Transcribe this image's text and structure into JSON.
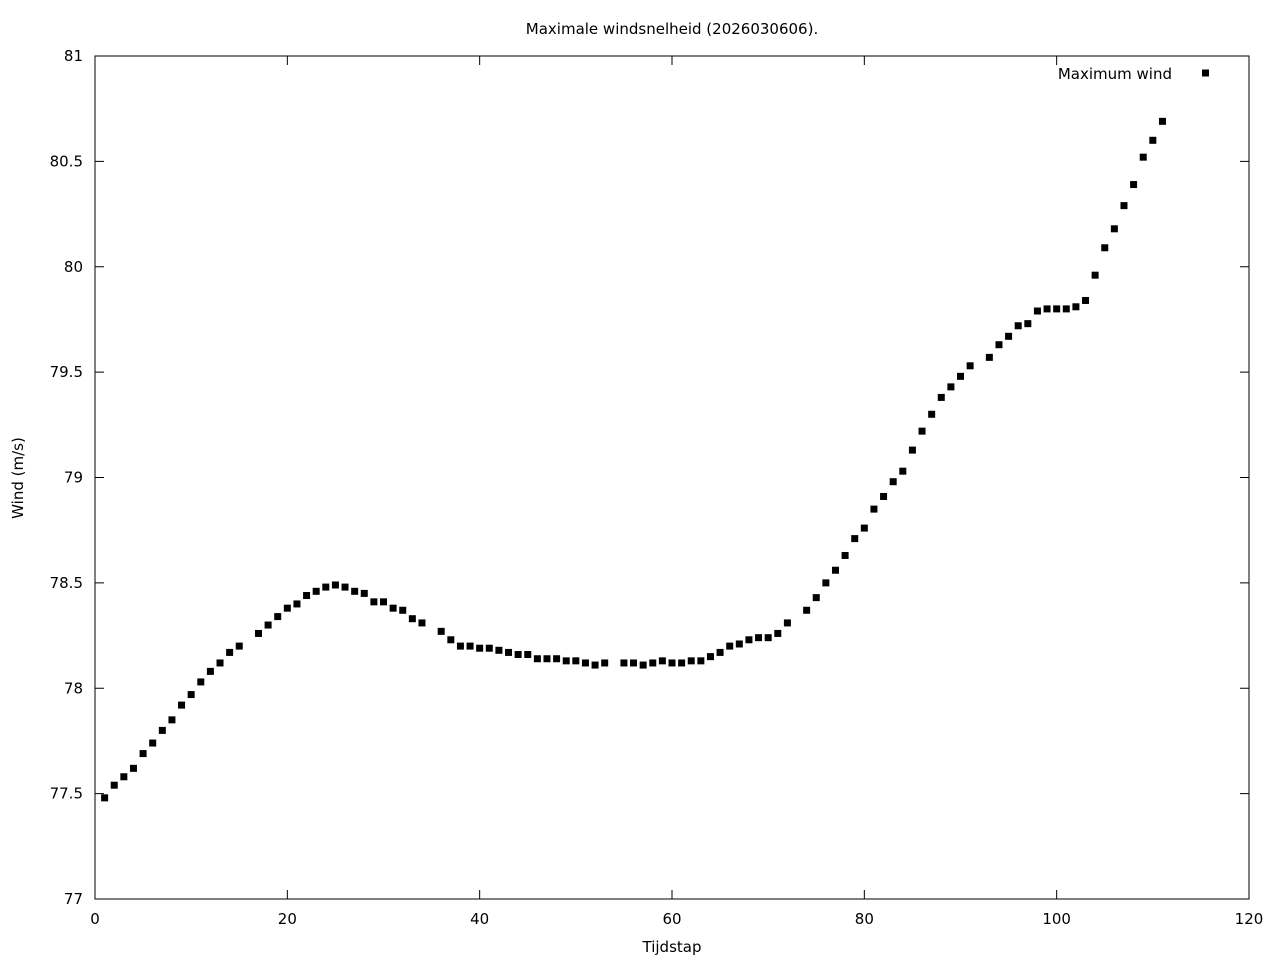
{
  "chart_data": {
    "type": "scatter",
    "title": "Maximale windsnelheid (2026030606).",
    "xlabel": "Tijdstap",
    "ylabel": "Wind (m/s)",
    "xlim": [
      0,
      120
    ],
    "ylim": [
      77,
      81
    ],
    "xticks": [
      0,
      20,
      40,
      60,
      80,
      100,
      120
    ],
    "xtick_labels": [
      "0",
      "20",
      "40",
      "60",
      "80",
      "100",
      "120"
    ],
    "yticks": [
      77,
      77.5,
      78,
      78.5,
      79,
      79.5,
      80,
      80.5,
      81
    ],
    "ytick_labels": [
      "77",
      "77.5",
      "78",
      "78.5",
      "79",
      "79.5",
      "80",
      "80.5",
      "81"
    ],
    "grid": false,
    "legend_position": "top-right",
    "marker_color": "#000000",
    "series": [
      {
        "name": "Maximum wind",
        "points": [
          [
            1,
            77.48
          ],
          [
            2,
            77.54
          ],
          [
            3,
            77.58
          ],
          [
            4,
            77.62
          ],
          [
            5,
            77.69
          ],
          [
            6,
            77.74
          ],
          [
            7,
            77.8
          ],
          [
            8,
            77.85
          ],
          [
            9,
            77.92
          ],
          [
            10,
            77.97
          ],
          [
            11,
            78.03
          ],
          [
            12,
            78.08
          ],
          [
            13,
            78.12
          ],
          [
            14,
            78.17
          ],
          [
            15,
            78.2
          ],
          [
            17,
            78.26
          ],
          [
            18,
            78.3
          ],
          [
            19,
            78.34
          ],
          [
            20,
            78.38
          ],
          [
            21,
            78.4
          ],
          [
            22,
            78.44
          ],
          [
            23,
            78.46
          ],
          [
            24,
            78.48
          ],
          [
            25,
            78.49
          ],
          [
            26,
            78.48
          ],
          [
            27,
            78.46
          ],
          [
            28,
            78.45
          ],
          [
            29,
            78.41
          ],
          [
            30,
            78.41
          ],
          [
            31,
            78.38
          ],
          [
            32,
            78.37
          ],
          [
            33,
            78.33
          ],
          [
            34,
            78.31
          ],
          [
            36,
            78.27
          ],
          [
            37,
            78.23
          ],
          [
            38,
            78.2
          ],
          [
            39,
            78.2
          ],
          [
            40,
            78.19
          ],
          [
            41,
            78.19
          ],
          [
            42,
            78.18
          ],
          [
            43,
            78.17
          ],
          [
            44,
            78.16
          ],
          [
            45,
            78.16
          ],
          [
            46,
            78.14
          ],
          [
            47,
            78.14
          ],
          [
            48,
            78.14
          ],
          [
            49,
            78.13
          ],
          [
            50,
            78.13
          ],
          [
            51,
            78.12
          ],
          [
            52,
            78.11
          ],
          [
            53,
            78.12
          ],
          [
            55,
            78.12
          ],
          [
            56,
            78.12
          ],
          [
            57,
            78.11
          ],
          [
            58,
            78.12
          ],
          [
            59,
            78.13
          ],
          [
            60,
            78.12
          ],
          [
            61,
            78.12
          ],
          [
            62,
            78.13
          ],
          [
            63,
            78.13
          ],
          [
            64,
            78.15
          ],
          [
            65,
            78.17
          ],
          [
            66,
            78.2
          ],
          [
            67,
            78.21
          ],
          [
            68,
            78.23
          ],
          [
            69,
            78.24
          ],
          [
            70,
            78.24
          ],
          [
            71,
            78.26
          ],
          [
            72,
            78.31
          ],
          [
            74,
            78.37
          ],
          [
            75,
            78.43
          ],
          [
            76,
            78.5
          ],
          [
            77,
            78.56
          ],
          [
            78,
            78.63
          ],
          [
            79,
            78.71
          ],
          [
            80,
            78.76
          ],
          [
            81,
            78.85
          ],
          [
            82,
            78.91
          ],
          [
            83,
            78.98
          ],
          [
            84,
            79.03
          ],
          [
            85,
            79.13
          ],
          [
            86,
            79.22
          ],
          [
            87,
            79.3
          ],
          [
            88,
            79.38
          ],
          [
            89,
            79.43
          ],
          [
            90,
            79.48
          ],
          [
            91,
            79.53
          ],
          [
            93,
            79.57
          ],
          [
            94,
            79.63
          ],
          [
            95,
            79.67
          ],
          [
            96,
            79.72
          ],
          [
            97,
            79.73
          ],
          [
            98,
            79.79
          ],
          [
            99,
            79.8
          ],
          [
            100,
            79.8
          ],
          [
            101,
            79.8
          ],
          [
            102,
            79.81
          ],
          [
            103,
            79.84
          ],
          [
            104,
            79.96
          ],
          [
            105,
            80.09
          ],
          [
            106,
            80.18
          ],
          [
            107,
            80.29
          ],
          [
            108,
            80.39
          ],
          [
            109,
            80.52
          ],
          [
            110,
            80.6
          ],
          [
            111,
            80.69
          ]
        ]
      }
    ]
  }
}
